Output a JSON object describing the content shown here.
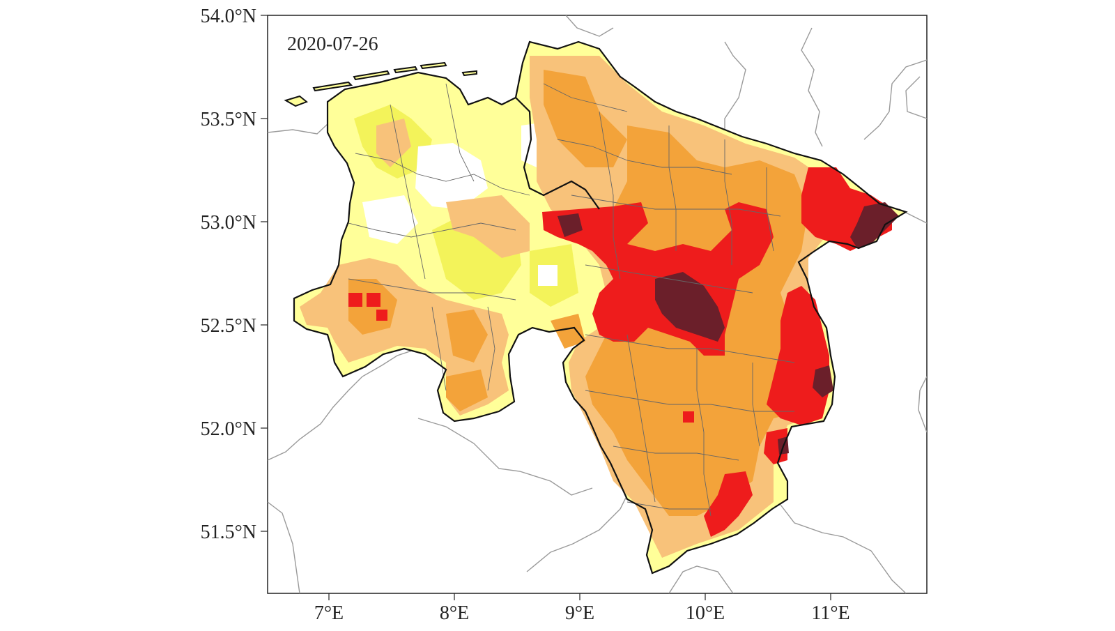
{
  "map": {
    "date_label": "2020-07-26",
    "lat_ticks": [
      "54.0°N",
      "53.5°N",
      "53.0°N",
      "52.5°N",
      "52.0°N",
      "51.5°N"
    ],
    "lon_ticks": [
      "7°E",
      "8°E",
      "9°E",
      "10°E",
      "11°E"
    ],
    "lat_range": [
      51.2,
      54.0
    ],
    "lon_range": [
      6.5,
      11.75
    ],
    "palette": {
      "lightest": "#ffff99",
      "light": "#f7f766",
      "pale_orange": "#f8c478",
      "orange": "#f3a53a",
      "red": "#ee1c1c",
      "dark": "#6b1f2a",
      "boundary": "#111111",
      "district": "#555555",
      "neighbor": "#999999"
    }
  }
}
